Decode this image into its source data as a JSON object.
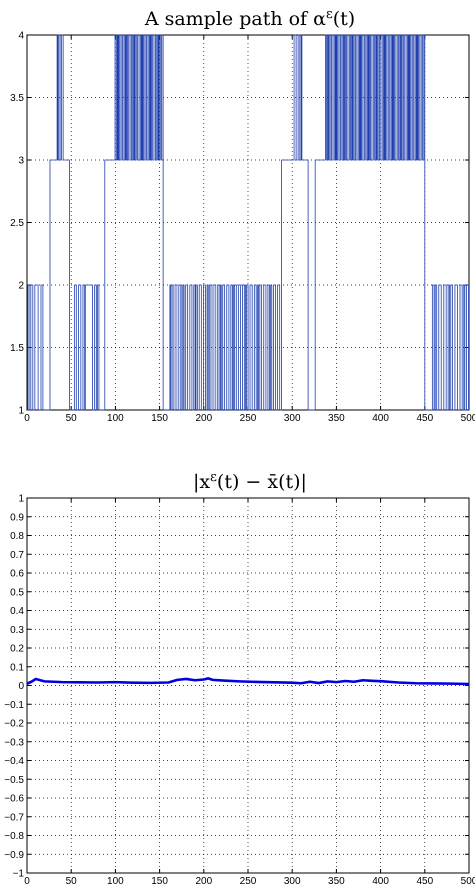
{
  "colors": {
    "series": "#1f3fae",
    "series2": "#0000e0",
    "axis": "#000000"
  },
  "chart_data": [
    {
      "type": "line",
      "title": "A sample path of α^ε(t)",
      "title_parts": {
        "main": "A sample path of α",
        "sup": "ε",
        "tail": "(t)"
      },
      "xlim": [
        0,
        500
      ],
      "ylim": [
        1,
        4
      ],
      "xticks": [
        "0",
        "50",
        "100",
        "150",
        "200",
        "250",
        "300",
        "350",
        "400",
        "450",
        "500"
      ],
      "yticks": [
        "1",
        "1.5",
        "2",
        "2.5",
        "3",
        "3.5",
        "4"
      ],
      "grid": true,
      "segments": [
        {
          "x": [
            0,
            10
          ],
          "pattern": "1-2",
          "pitch": 1.6
        },
        {
          "x": [
            10,
            18
          ],
          "pattern": "2-1",
          "pitch": 2.5
        },
        {
          "x": [
            18,
            26
          ],
          "pattern": "flat",
          "level": 1
        },
        {
          "x": [
            26,
            33
          ],
          "pattern": "flat",
          "level": 3
        },
        {
          "x": [
            33,
            41
          ],
          "pattern": "3-4",
          "pitch": 1.2
        },
        {
          "x": [
            41,
            48
          ],
          "pattern": "flat",
          "level": 3
        },
        {
          "x": [
            48,
            52
          ],
          "pattern": "flat",
          "level": 1
        },
        {
          "x": [
            52,
            66
          ],
          "pattern": "1-2",
          "pitch": 1.8
        },
        {
          "x": [
            66,
            74
          ],
          "pattern": "flat",
          "level": 2
        },
        {
          "x": [
            74,
            83
          ],
          "pattern": "1-2",
          "pitch": 2.0
        },
        {
          "x": [
            83,
            88
          ],
          "pattern": "flat",
          "level": 1
        },
        {
          "x": [
            88,
            98
          ],
          "pattern": "flat",
          "level": 3
        },
        {
          "x": [
            98,
            154
          ],
          "pattern": "3-4",
          "pitch": 1.1
        },
        {
          "x": [
            154,
            160
          ],
          "pattern": "flat",
          "level": 1
        },
        {
          "x": [
            160,
            288
          ],
          "pattern": "1-2",
          "pitch": 1.7
        },
        {
          "x": [
            288,
            300
          ],
          "pattern": "flat",
          "level": 3
        },
        {
          "x": [
            300,
            312
          ],
          "pattern": "3-4",
          "pitch": 1.6
        },
        {
          "x": [
            312,
            318
          ],
          "pattern": "flat",
          "level": 3
        },
        {
          "x": [
            318,
            326
          ],
          "pattern": "flat",
          "level": 1
        },
        {
          "x": [
            326,
            336
          ],
          "pattern": "flat",
          "level": 3
        },
        {
          "x": [
            336,
            450
          ],
          "pattern": "3-4",
          "pitch": 1.1
        },
        {
          "x": [
            450,
            456
          ],
          "pattern": "flat",
          "level": 1
        },
        {
          "x": [
            456,
            500
          ],
          "pattern": "1-2",
          "pitch": 2.0
        }
      ]
    },
    {
      "type": "line",
      "title": "|x^ε(t) − x̄(t)|",
      "title_parts": {
        "open": "|x",
        "sup": "ε",
        "mid": "(t) − x̄(t)|"
      },
      "xlim": [
        0,
        500
      ],
      "ylim": [
        -1,
        1
      ],
      "xticks": [
        "0",
        "50",
        "100",
        "150",
        "200",
        "250",
        "300",
        "350",
        "400",
        "450",
        "500"
      ],
      "yticks": [
        "−1",
        "−0.9",
        "−0.8",
        "−0.7",
        "−0.6",
        "−0.5",
        "−0.4",
        "−0.3",
        "−0.2",
        "−0.1",
        "0",
        "0.1",
        "0.2",
        "0.3",
        "0.4",
        "0.5",
        "0.6",
        "0.7",
        "0.8",
        "0.9",
        "1"
      ],
      "grid": true,
      "x": [
        0,
        5,
        10,
        15,
        20,
        40,
        60,
        80,
        100,
        120,
        140,
        160,
        170,
        180,
        190,
        200,
        205,
        210,
        220,
        240,
        260,
        280,
        300,
        310,
        320,
        330,
        340,
        350,
        360,
        370,
        380,
        390,
        400,
        420,
        440,
        460,
        480,
        500
      ],
      "y": [
        0.01,
        0.02,
        0.035,
        0.028,
        0.022,
        0.018,
        0.017,
        0.016,
        0.018,
        0.015,
        0.014,
        0.016,
        0.03,
        0.035,
        0.028,
        0.032,
        0.038,
        0.03,
        0.027,
        0.022,
        0.019,
        0.017,
        0.015,
        0.012,
        0.02,
        0.013,
        0.022,
        0.018,
        0.024,
        0.02,
        0.028,
        0.025,
        0.023,
        0.016,
        0.012,
        0.011,
        0.01,
        0.008
      ]
    }
  ]
}
